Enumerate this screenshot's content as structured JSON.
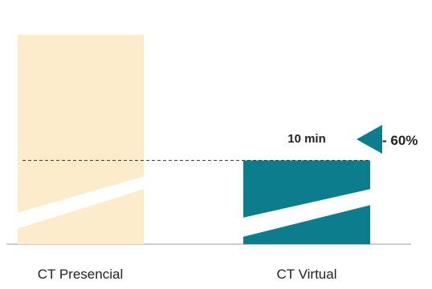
{
  "chart_data": {
    "type": "bar",
    "categories": [
      "CT Presencial",
      "CT Virtual"
    ],
    "values": [
      25,
      10
    ],
    "units": "min",
    "data_labels": [
      "",
      "10 min"
    ],
    "annotation": {
      "text": "- 60%"
    },
    "ylim": [
      0,
      28
    ],
    "axis_break": true,
    "grid": false,
    "colors": {
      "CT Presencial": "#fdeccb",
      "CT Virtual": "#0c7d8d",
      "annotation": "#0c7d8d",
      "dashed": "#333333"
    }
  }
}
